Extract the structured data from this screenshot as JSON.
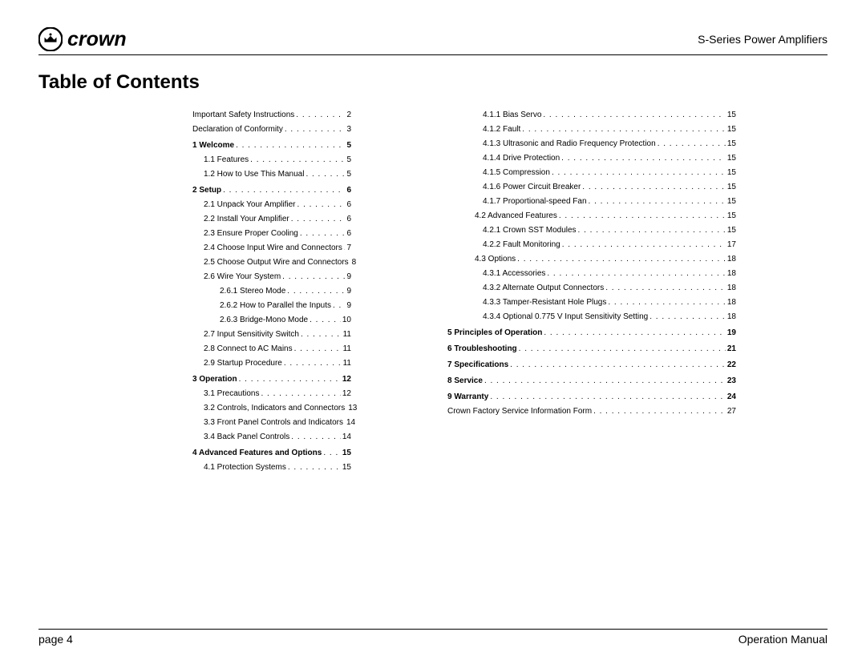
{
  "header": {
    "brand": "crown",
    "product": "S-Series Power Amplifiers"
  },
  "title": "Table of Contents",
  "footer": {
    "left": "page 4",
    "right": "Operation Manual"
  },
  "colors": {
    "text": "#000000",
    "background": "#ffffff",
    "rule": "#000000"
  },
  "typography": {
    "title_fontsize": 24,
    "title_weight": 700,
    "header_product_fontsize": 14,
    "toc_fontsize": 10,
    "chapter_weight": 700,
    "footer_fontsize": 14
  },
  "toc": {
    "left": [
      {
        "indent": 0,
        "bold": false,
        "label": "Important Safety Instructions",
        "page": "2"
      },
      {
        "indent": 0,
        "bold": false,
        "label": "Declaration of Conformity",
        "page": "3"
      },
      {
        "indent": 0,
        "bold": true,
        "label": "1 Welcome",
        "page": "5"
      },
      {
        "indent": 1,
        "bold": false,
        "label": "1.1 Features",
        "page": "5"
      },
      {
        "indent": 1,
        "bold": false,
        "label": "1.2 How to Use This Manual",
        "page": "5"
      },
      {
        "indent": 0,
        "bold": true,
        "label": "2 Setup",
        "page": "6"
      },
      {
        "indent": 1,
        "bold": false,
        "label": "2.1 Unpack Your Amplifier",
        "page": "6"
      },
      {
        "indent": 1,
        "bold": false,
        "label": "2.2 Install Your Amplifier",
        "page": "6"
      },
      {
        "indent": 1,
        "bold": false,
        "label": "2.3 Ensure Proper Cooling",
        "page": "6"
      },
      {
        "indent": 1,
        "bold": false,
        "label": "2.4 Choose Input Wire and Connectors",
        "page": "7"
      },
      {
        "indent": 1,
        "bold": false,
        "label": "2.5 Choose Output Wire and Connectors",
        "page": "8"
      },
      {
        "indent": 1,
        "bold": false,
        "label": "2.6 Wire Your System",
        "page": "9"
      },
      {
        "indent": 2,
        "bold": false,
        "label": "2.6.1 Stereo Mode",
        "page": "9"
      },
      {
        "indent": 2,
        "bold": false,
        "label": "2.6.2 How to Parallel the Inputs",
        "page": "9"
      },
      {
        "indent": 2,
        "bold": false,
        "label": "2.6.3 Bridge-Mono Mode",
        "page": "10"
      },
      {
        "indent": 1,
        "bold": false,
        "label": "2.7 Input Sensitivity Switch",
        "page": "11"
      },
      {
        "indent": 1,
        "bold": false,
        "label": "2.8 Connect to AC Mains",
        "page": "11"
      },
      {
        "indent": 1,
        "bold": false,
        "label": "2.9 Startup Procedure",
        "page": "11"
      },
      {
        "indent": 0,
        "bold": true,
        "label": "3 Operation",
        "page": "12"
      },
      {
        "indent": 1,
        "bold": false,
        "label": "3.1 Precautions",
        "page": "12"
      },
      {
        "indent": 1,
        "bold": false,
        "label": "3.2 Controls, Indicators and Connectors",
        "page": "13"
      },
      {
        "indent": 1,
        "bold": false,
        "label": "3.3 Front Panel Controls and Indicators",
        "page": "14"
      },
      {
        "indent": 1,
        "bold": false,
        "label": "3.4 Back Panel Controls",
        "page": "14"
      },
      {
        "indent": 0,
        "bold": true,
        "label": "4 Advanced Features and Options",
        "page": "15"
      },
      {
        "indent": 1,
        "bold": false,
        "label": "4.1 Protection Systems",
        "page": "15"
      }
    ],
    "right": [
      {
        "indent": 3,
        "bold": false,
        "label": "4.1.1 Bias Servo",
        "page": "15"
      },
      {
        "indent": 3,
        "bold": false,
        "label": "4.1.2 Fault",
        "page": "15"
      },
      {
        "indent": 3,
        "bold": false,
        "label": "4.1.3 Ultrasonic and Radio Frequency Protection",
        "page": "15"
      },
      {
        "indent": 3,
        "bold": false,
        "label": "4.1.4 Drive Protection",
        "page": "15"
      },
      {
        "indent": 3,
        "bold": false,
        "label": "4.1.5 Compression",
        "page": "15"
      },
      {
        "indent": 3,
        "bold": false,
        "label": "4.1.6 Power Circuit Breaker",
        "page": "15"
      },
      {
        "indent": 3,
        "bold": false,
        "label": "4.1.7 Proportional-speed Fan",
        "page": "15"
      },
      {
        "indent": 2,
        "bold": false,
        "label": "4.2 Advanced Features",
        "page": "15"
      },
      {
        "indent": 3,
        "bold": false,
        "label": "4.2.1 Crown SST Modules",
        "page": "15"
      },
      {
        "indent": 3,
        "bold": false,
        "label": "4.2.2 Fault Monitoring",
        "page": "17"
      },
      {
        "indent": 2,
        "bold": false,
        "label": "4.3 Options",
        "page": "18"
      },
      {
        "indent": 3,
        "bold": false,
        "label": "4.3.1 Accessories",
        "page": "18"
      },
      {
        "indent": 3,
        "bold": false,
        "label": "4.3.2 Alternate Output Connectors",
        "page": "18"
      },
      {
        "indent": 3,
        "bold": false,
        "label": "4.3.3 Tamper-Resistant Hole Plugs",
        "page": "18"
      },
      {
        "indent": 3,
        "bold": false,
        "label": "4.3.4 Optional 0.775 V Input Sensitivity Setting",
        "page": "18"
      },
      {
        "indent": 0,
        "bold": true,
        "label": "5 Principles of Operation",
        "page": "19"
      },
      {
        "indent": 0,
        "bold": true,
        "label": "6 Troubleshooting",
        "page": "21"
      },
      {
        "indent": 0,
        "bold": true,
        "label": "7 Specifications",
        "page": "22"
      },
      {
        "indent": 0,
        "bold": true,
        "label": "8 Service",
        "page": "23"
      },
      {
        "indent": 0,
        "bold": true,
        "label": "9 Warranty",
        "page": "24"
      },
      {
        "indent": 0,
        "bold": false,
        "label": "Crown Factory Service Information Form",
        "page": "27"
      }
    ]
  }
}
